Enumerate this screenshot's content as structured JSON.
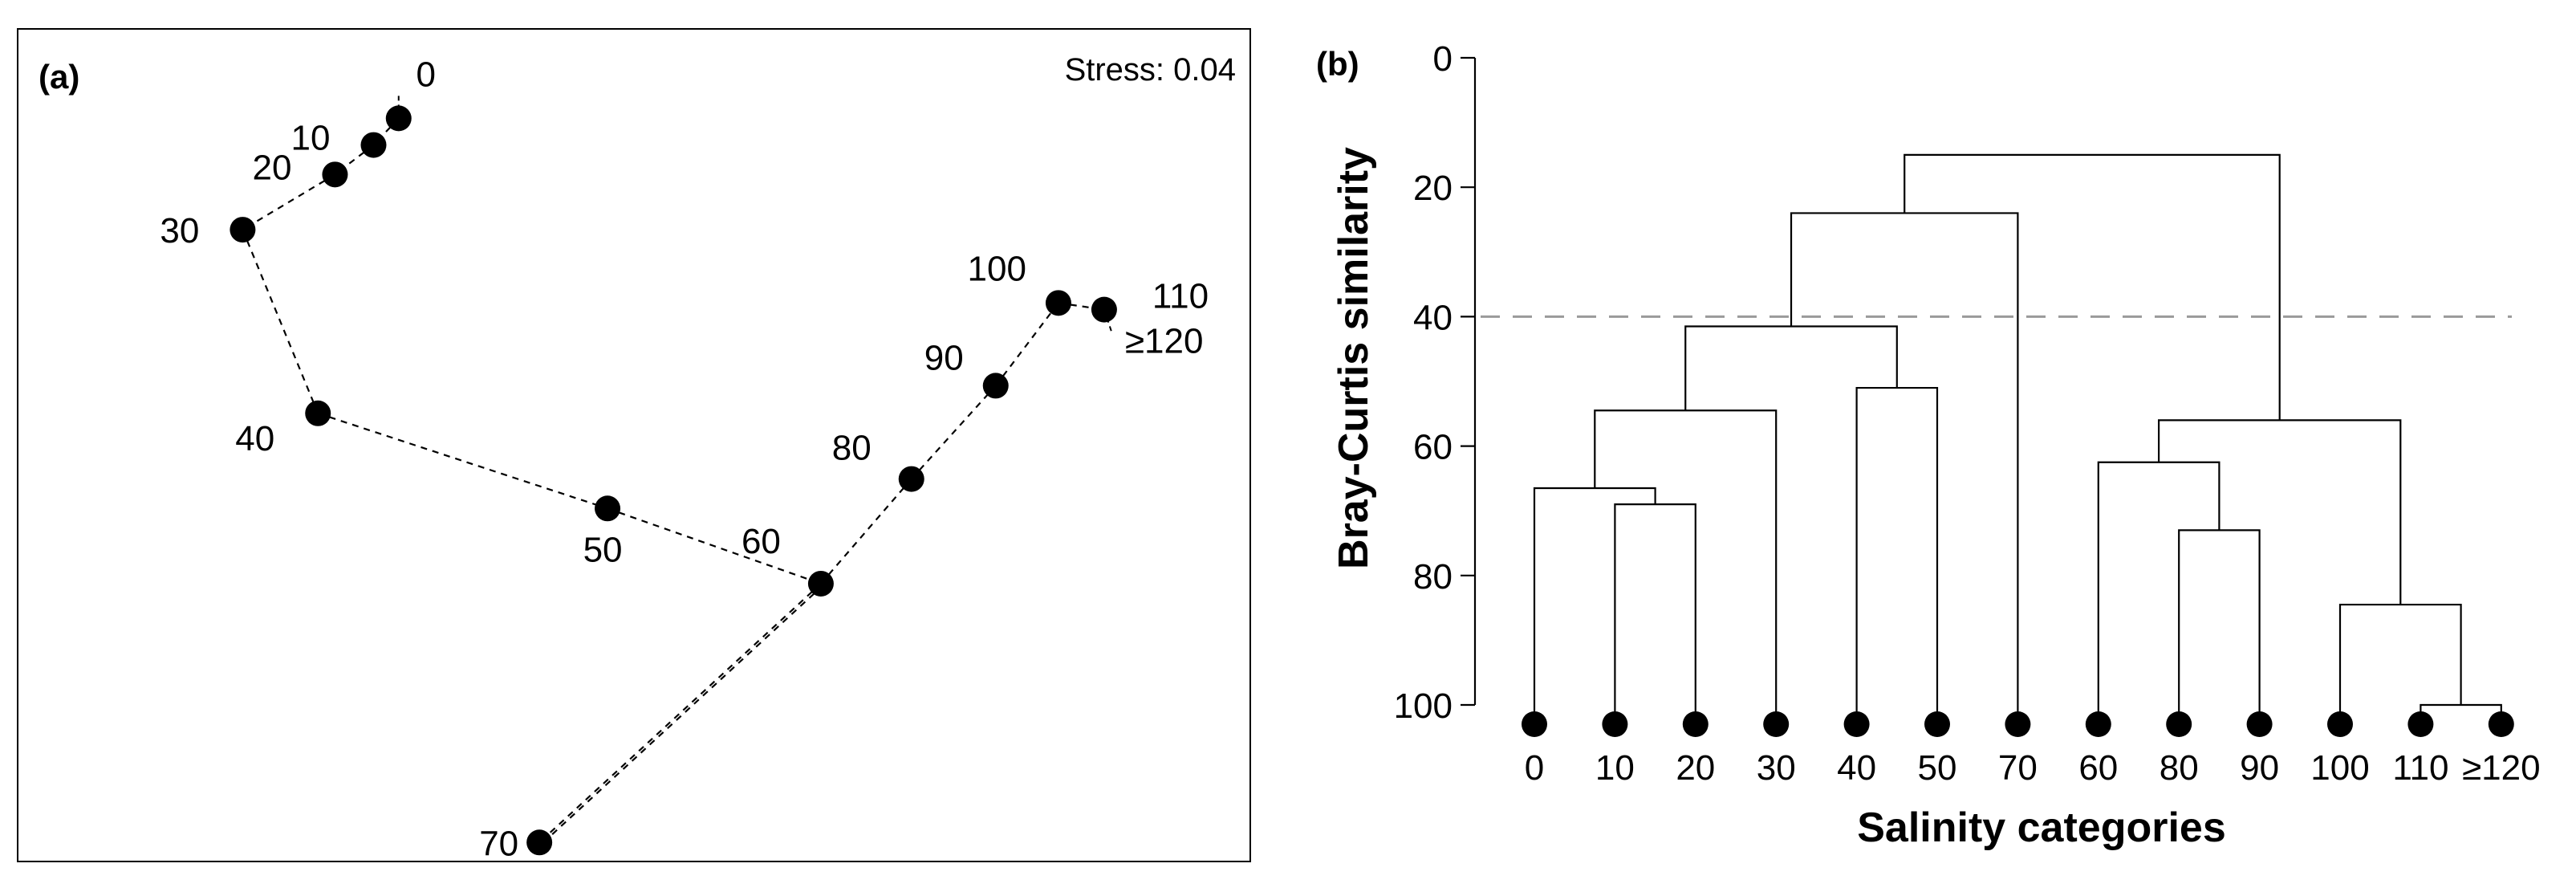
{
  "chart_data": [
    {
      "type": "scatter",
      "panel_label": "(a)",
      "annotation": "Stress: 0.04",
      "description_free": true,
      "points": [
        {
          "label": "0",
          "x": 1.0,
          "y": 3.56
        },
        {
          "label": "10",
          "x": 0.72,
          "y": 3.28
        },
        {
          "label": "20",
          "x": 0.29,
          "y": 2.97
        },
        {
          "label": "30",
          "x": -0.74,
          "y": 2.39
        },
        {
          "label": "40",
          "x": 0.1,
          "y": 0.46
        },
        {
          "label": "50",
          "x": 3.33,
          "y": -0.54
        },
        {
          "label": "60",
          "x": 5.71,
          "y": -1.33
        },
        {
          "label": "70",
          "x": 2.57,
          "y": -4.05
        },
        {
          "label": "80",
          "x": 6.72,
          "y": -0.23
        },
        {
          "label": "90",
          "x": 7.66,
          "y": 0.75
        },
        {
          "label": "100",
          "x": 8.36,
          "y": 1.62
        },
        {
          "label": "110",
          "x": 8.87,
          "y": 1.55
        },
        {
          "label": "≥120",
          "x": 8.87,
          "y": 1.55
        }
      ],
      "path_order": [
        "0",
        "10",
        "20",
        "30",
        "40",
        "50",
        "60",
        "70",
        "60",
        "80",
        "90",
        "100",
        "110"
      ],
      "xlim": [
        -3.25,
        10.5
      ],
      "ylim": [
        -4.25,
        4.5
      ]
    },
    {
      "type": "dendrogram",
      "panel_label": "(b)",
      "ylabel": "Bray-Curtis similarity",
      "xlabel": "Salinity categories",
      "ylim": [
        0,
        100
      ],
      "yticks": [
        "0",
        "20",
        "40",
        "60",
        "80",
        "100"
      ],
      "threshold": 40,
      "leaves": [
        "0",
        "10",
        "20",
        "30",
        "40",
        "50",
        "70",
        "60",
        "80",
        "90",
        "100",
        "110",
        "≥120"
      ],
      "merges": [
        {
          "left": "L10",
          "right": "L20",
          "height": 69
        },
        {
          "left": "L0",
          "right": "C1",
          "height": 66.5
        },
        {
          "left": "C2",
          "right": "L30",
          "height": 54.5
        },
        {
          "left": "L40",
          "right": "L50",
          "height": 51
        },
        {
          "left": "C3",
          "right": "C4",
          "height": 41.5
        },
        {
          "left": "C5",
          "right": "L70",
          "height": 24
        },
        {
          "left": "L110",
          "right": "L≥120",
          "height": 100
        },
        {
          "left": "L100",
          "right": "C7",
          "height": 84.5
        },
        {
          "left": "L80",
          "right": "L90",
          "height": 73
        },
        {
          "left": "L60",
          "right": "C9",
          "height": 62.5
        },
        {
          "left": "C10",
          "right": "C8",
          "height": 56
        },
        {
          "left": "C6",
          "right": "C11",
          "height": 15
        }
      ]
    }
  ]
}
